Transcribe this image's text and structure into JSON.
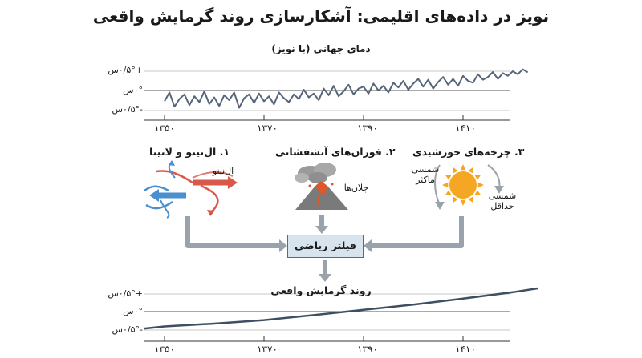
{
  "title": "نویز در داده‌های اقلیمی: آشکارسازی روند گرمایش واقعی",
  "top_chart": {
    "label": "دمای جهانی (با نویز)",
    "y_ticks": [
      "+۰/۵°س",
      "۰°س",
      "-۰/۵°س"
    ],
    "x_ticks": [
      "۱۳۵۰",
      "۱۳۷۰",
      "۱۳۹۰",
      "۱۴۱۰"
    ]
  },
  "factors": {
    "enso": {
      "label": "۱. ال‌نینو و لانینا",
      "sublabel": "ال‌نینو",
      "color_warm": "#d8594a",
      "color_cool": "#4a8fd0"
    },
    "volcano": {
      "label": "۲. فوران‌های آتشفشانی",
      "sublabel": "چلان‌ها"
    },
    "solar": {
      "label": "۳. چرخه‌های خورشیدی",
      "max_label": "شمسی ماکثر",
      "min_label": "شمسی حداقل",
      "color": "#f5a623"
    }
  },
  "filter_box": {
    "label": "فیلتر ریاضی",
    "color": "#d7e4ee"
  },
  "bottom_chart": {
    "label": "روند گرمایش واقعی",
    "y_ticks": [
      "+۰/۵°س",
      "۰°س",
      "-۰/۵°س"
    ],
    "x_ticks": [
      "۱۳۵۰",
      "۱۳۷۰",
      "۱۳۹۰",
      "۱۴۱۰"
    ]
  },
  "chart_data": [
    {
      "type": "line",
      "title": "دمای جهانی (با نویز)",
      "x_ticks": [
        "۱۳۵۰",
        "۱۳۷۰",
        "۱۳۹۰",
        "۱۴۱۰"
      ],
      "xlim": [
        1350,
        1425
      ],
      "ylim": [
        -0.6,
        0.7
      ],
      "x": [
        1350,
        1351,
        1352,
        1353,
        1354,
        1355,
        1356,
        1357,
        1358,
        1359,
        1360,
        1361,
        1362,
        1363,
        1364,
        1365,
        1366,
        1367,
        1368,
        1369,
        1370,
        1371,
        1372,
        1373,
        1374,
        1375,
        1376,
        1377,
        1378,
        1379,
        1380,
        1381,
        1382,
        1383,
        1384,
        1385,
        1386,
        1387,
        1388,
        1389,
        1390,
        1391,
        1392,
        1393,
        1394,
        1395,
        1396,
        1397,
        1398,
        1399,
        1400,
        1401,
        1402,
        1403,
        1404,
        1405,
        1406,
        1407,
        1408,
        1409,
        1410,
        1411,
        1412,
        1413,
        1414,
        1415,
        1416,
        1417,
        1418,
        1419,
        1420,
        1421,
        1422,
        1423
      ],
      "values": [
        -0.28,
        -0.05,
        -0.42,
        -0.22,
        -0.1,
        -0.38,
        -0.15,
        -0.3,
        -0.02,
        -0.35,
        -0.18,
        -0.4,
        -0.12,
        -0.25,
        -0.05,
        -0.45,
        -0.2,
        -0.1,
        -0.32,
        -0.08,
        -0.28,
        -0.15,
        -0.36,
        -0.05,
        -0.2,
        -0.3,
        -0.1,
        -0.22,
        0.02,
        -0.18,
        -0.08,
        -0.25,
        0.05,
        -0.12,
        0.12,
        -0.15,
        -0.02,
        0.15,
        -0.1,
        0.05,
        0.1,
        -0.08,
        0.18,
        0.0,
        0.12,
        -0.05,
        0.2,
        0.08,
        0.25,
        0.02,
        0.18,
        0.3,
        0.1,
        0.28,
        0.05,
        0.22,
        0.35,
        0.15,
        0.3,
        0.12,
        0.38,
        0.25,
        0.2,
        0.42,
        0.28,
        0.35,
        0.48,
        0.3,
        0.45,
        0.38,
        0.5,
        0.42,
        0.55,
        0.47
      ]
    },
    {
      "type": "line",
      "title": "روند گرمایش واقعی",
      "x_ticks": [
        "۱۳۵۰",
        "۱۳۷۰",
        "۱۳۹۰",
        "۱۴۱۰"
      ],
      "xlim": [
        1350,
        1425
      ],
      "ylim": [
        -0.6,
        0.7
      ],
      "x": [
        1342,
        1350,
        1360,
        1370,
        1380,
        1390,
        1400,
        1410,
        1420,
        1425
      ],
      "values": [
        -0.48,
        -0.42,
        -0.34,
        -0.24,
        -0.1,
        0.05,
        0.2,
        0.37,
        0.55,
        0.66
      ]
    }
  ]
}
